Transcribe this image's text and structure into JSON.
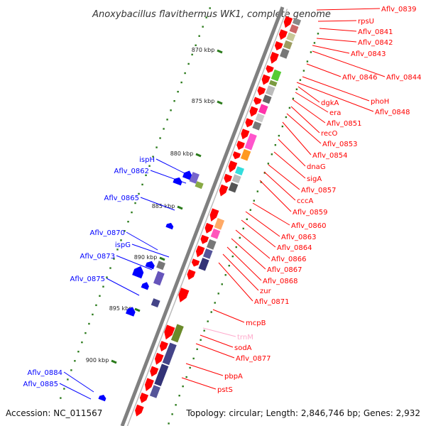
{
  "title": "Anoxybacillus flavithermus WK1, complete genome",
  "accession": "Accession: NC_011567",
  "topology": "Topology: circular; Length: 2,846,746 bp; Genes: 2,932",
  "colors": {
    "forward_gene": "#ff0000",
    "reverse_gene": "#0000ff",
    "trna": "#ffaacc",
    "axis": "#808080",
    "tick": "#2a7a1a"
  },
  "kbp_labels": [
    "870 kbp",
    "875 kbp",
    "880 kbp",
    "885 kbp",
    "890 kbp",
    "895 kbp",
    "900 kbp"
  ],
  "right_labels": [
    "Aflv_0839",
    "rpsU",
    "Aflv_0841",
    "Aflv_0842",
    "Aflv_0843",
    "Aflv_0846",
    "Aflv_0844",
    "phoH",
    "Aflv_0848",
    "dgkA",
    "era",
    "Aflv_0851",
    "recO",
    "Aflv_0853",
    "Aflv_0854",
    "dnaG",
    "sigA",
    "Aflv_0857",
    "cccA",
    "Aflv_0859",
    "Aflv_0860",
    "Aflv_0863",
    "Aflv_0864",
    "Aflv_0866",
    "Aflv_0867",
    "Aflv_0868",
    "zur",
    "Aflv_0871",
    "mcpB",
    "trnM",
    "sodA",
    "Aflv_0877",
    "pbpA",
    "pstS"
  ],
  "left_labels": [
    "ispH",
    "Aflv_0862",
    "Aflv_0865",
    "Aflv_0870",
    "ispG",
    "Aflv_0873",
    "Aflv_0875",
    "Aflv_0884",
    "Aflv_0885"
  ]
}
